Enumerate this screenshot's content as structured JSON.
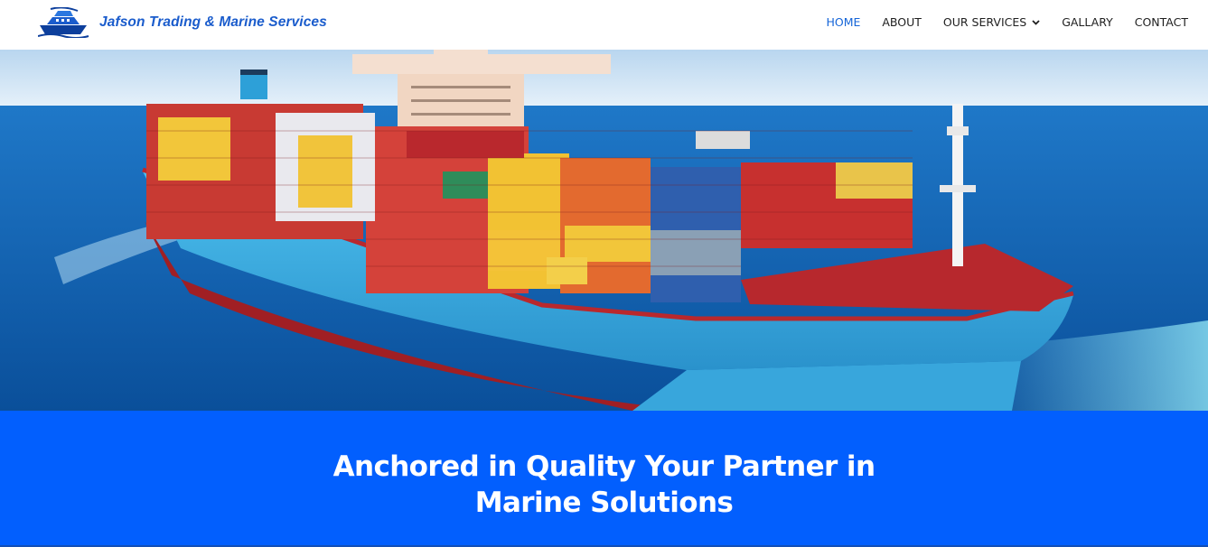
{
  "header": {
    "brand": "Jafson Trading & Marine Services",
    "nav": [
      {
        "label": "HOME",
        "active": true
      },
      {
        "label": "ABOUT",
        "active": false
      },
      {
        "label": "OUR SERVICES",
        "active": false,
        "dropdown": true
      },
      {
        "label": "GALLARY",
        "active": false
      },
      {
        "label": "CONTACT",
        "active": false
      }
    ]
  },
  "hero": {
    "image": "container-ship-at-sea"
  },
  "banner": {
    "title": "Anchored in Quality Your Partner in Marine Solutions"
  },
  "colors": {
    "brand": "#1a5ccc",
    "nav_active": "#1565d8",
    "banner_bg": "#025ffe",
    "sea": "#0b5fb0",
    "hull": "#3fb2e6"
  },
  "icons": {
    "logo": "ship-logo-icon",
    "dropdown": "chevron-down-icon"
  }
}
